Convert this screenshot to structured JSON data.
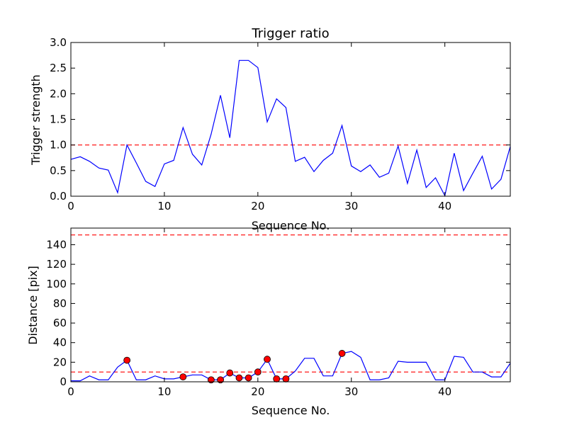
{
  "colors": {
    "line": "#0000ff",
    "threshold": "#ff0000",
    "marker_fill": "#ff0000",
    "marker_edge": "#000000"
  },
  "chart_data": [
    {
      "type": "line",
      "title": "Trigger ratio",
      "xlabel": "Sequence No.",
      "ylabel": "Trigger strength",
      "xlim": [
        0,
        47
      ],
      "ylim": [
        0,
        3.0
      ],
      "xticks": [
        0,
        10,
        20,
        30,
        40
      ],
      "yticks": [
        0.0,
        0.5,
        1.0,
        1.5,
        2.0,
        2.5,
        3.0
      ],
      "ytick_labels": [
        "0.0",
        "0.5",
        "1.0",
        "1.5",
        "2.0",
        "2.5",
        "3.0"
      ],
      "threshold": 1.0,
      "series": [
        {
          "x": [
            0,
            1,
            2,
            3,
            4,
            5,
            6,
            7,
            8,
            9,
            10,
            11,
            12,
            13,
            14,
            15,
            16,
            17,
            18,
            19,
            20,
            21,
            22,
            23,
            24,
            25,
            26,
            27,
            28,
            29,
            30,
            31,
            32,
            33,
            34,
            35,
            36,
            37,
            38,
            39,
            40,
            41,
            42,
            43,
            44,
            45,
            46,
            47
          ],
          "values": [
            0.72,
            0.77,
            0.68,
            0.55,
            0.51,
            0.07,
            1.0,
            0.65,
            0.29,
            0.19,
            0.63,
            0.7,
            1.34,
            0.82,
            0.61,
            1.21,
            1.97,
            1.14,
            2.65,
            2.65,
            2.51,
            1.45,
            1.9,
            1.73,
            0.68,
            0.76,
            0.48,
            0.7,
            0.84,
            1.38,
            0.59,
            0.48,
            0.61,
            0.37,
            0.45,
            0.98,
            0.25,
            0.9,
            0.17,
            0.36,
            0.01,
            0.84,
            0.11,
            0.45,
            0.78,
            0.14,
            0.33,
            0.97
          ]
        }
      ]
    },
    {
      "type": "line",
      "title": "",
      "xlabel": "Sequence No.",
      "ylabel": "Distance [pix]",
      "xlim": [
        0,
        47
      ],
      "ylim": [
        0,
        157
      ],
      "xticks": [
        0,
        10,
        20,
        30,
        40
      ],
      "yticks": [
        0,
        20,
        40,
        60,
        80,
        100,
        120,
        140
      ],
      "thresholds": [
        10,
        150
      ],
      "series": [
        {
          "x": [
            0,
            1,
            2,
            3,
            4,
            5,
            6,
            7,
            8,
            9,
            10,
            11,
            12,
            13,
            14,
            15,
            16,
            17,
            18,
            19,
            20,
            21,
            22,
            23,
            24,
            25,
            26,
            27,
            28,
            29,
            30,
            31,
            32,
            33,
            34,
            35,
            36,
            37,
            38,
            39,
            40,
            41,
            42,
            43,
            44,
            45,
            46,
            47
          ],
          "values": [
            1,
            1,
            6,
            2,
            2,
            15,
            22,
            2,
            2,
            6,
            3,
            3,
            5,
            7,
            7,
            2,
            2,
            9,
            4,
            4,
            10,
            23,
            3,
            3,
            11,
            24,
            24,
            6,
            6,
            29,
            31,
            25,
            2,
            2,
            4,
            21,
            20,
            20,
            20,
            2,
            2,
            26,
            25,
            10,
            10,
            5,
            5,
            19
          ]
        }
      ],
      "markers": {
        "x": [
          6,
          12,
          15,
          16,
          17,
          18,
          19,
          20,
          21,
          22,
          23,
          29
        ],
        "y": [
          22,
          5,
          2,
          2,
          9,
          4,
          4,
          10,
          23,
          3,
          3,
          29
        ]
      }
    }
  ]
}
